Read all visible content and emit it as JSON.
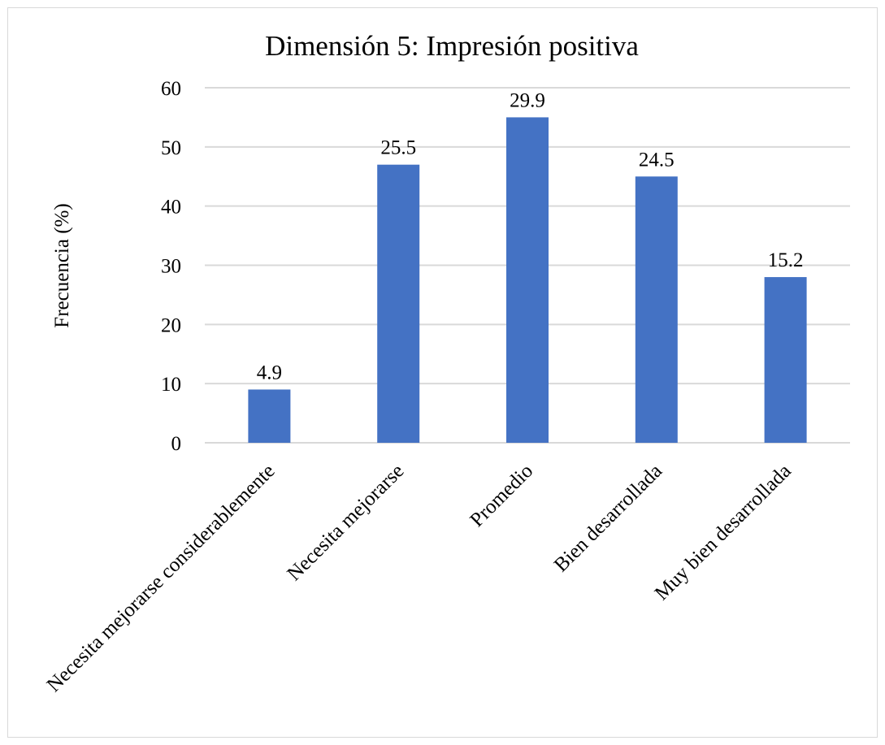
{
  "chart_data": {
    "type": "bar",
    "title": "Dimensión 5: Impresión positiva",
    "xlabel": "",
    "ylabel": "Frecuencia (%)",
    "categories": [
      "Necesita mejorarse considerablemente",
      "Necesita mejorarse",
      "Promedio",
      "Bien desarrollada",
      "Muy bien desarrollada"
    ],
    "values": [
      9,
      47,
      55,
      45,
      28
    ],
    "data_labels": [
      "4.9",
      "25.5",
      "29.9",
      "24.5",
      "15.2"
    ],
    "ylim": [
      0,
      60
    ],
    "yticks": [
      0,
      10,
      20,
      30,
      40,
      50,
      60
    ],
    "grid": true,
    "legend": "none",
    "colors": {
      "bar": "#4472c4",
      "grid": "#d9d9d9",
      "axis": "#d9d9d9",
      "text": "#000000"
    }
  }
}
